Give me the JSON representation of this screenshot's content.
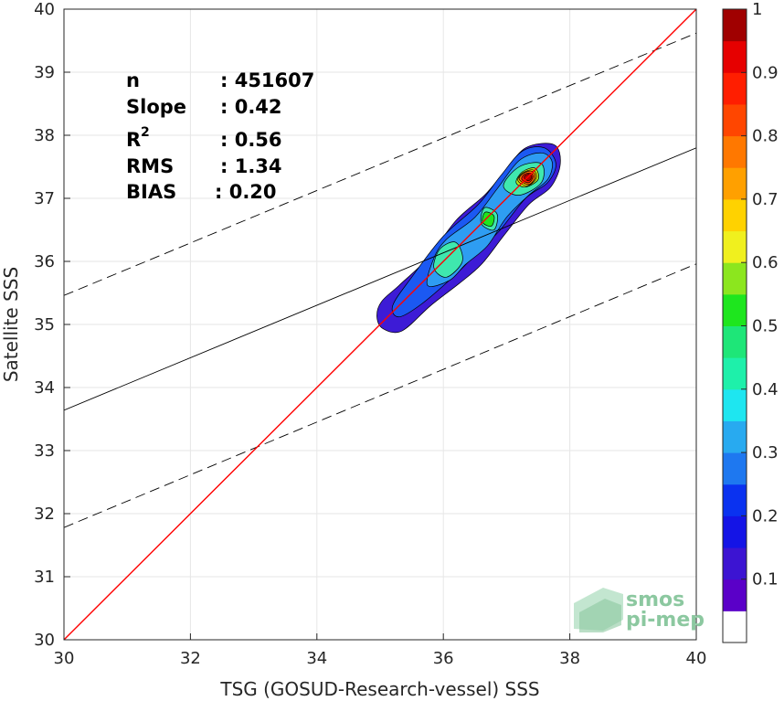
{
  "chart_data": {
    "type": "scatter",
    "subtype": "density-contour",
    "xlabel": "TSG (GOSUD-Research-vessel) SSS",
    "ylabel": "Satellite SSS",
    "xlim": [
      30,
      40
    ],
    "ylim": [
      30,
      40
    ],
    "xticks": [
      "30",
      "32",
      "34",
      "36",
      "38",
      "40"
    ],
    "yticks": [
      "30",
      "31",
      "32",
      "33",
      "34",
      "35",
      "36",
      "37",
      "38",
      "39",
      "40"
    ],
    "grid": true,
    "stats": {
      "n_label": "n",
      "n_value": ": 451607",
      "slope_label": "Slope",
      "slope_value": ": 0.42",
      "r2_label": "R",
      "r2_sup": "2",
      "r2_value": ": 0.56",
      "rms_label": "RMS",
      "rms_value": ": 1.34",
      "bias_label": "BIAS",
      "bias_value": ": 0.20"
    },
    "one_to_one_line": {
      "color": "#ff0000",
      "from": [
        30,
        30
      ],
      "to": [
        40,
        40
      ]
    },
    "fit_line": {
      "color": "#000000",
      "style": "solid",
      "y_at_x30": 33.64,
      "y_at_x40": 37.8
    },
    "upper_bound_line": {
      "color": "#000000",
      "style": "dashed",
      "y_at_x30": 35.46,
      "y_at_x40": 39.62
    },
    "lower_bound_line": {
      "color": "#000000",
      "style": "dashed",
      "y_at_x30": 31.78,
      "y_at_x40": 35.96
    },
    "density_levels": [
      {
        "level": 0.05,
        "color": "#3d1bd6",
        "points": [
          [
            35.02,
            35.36
          ],
          [
            34.95,
            35.12
          ],
          [
            35.05,
            34.93
          ],
          [
            35.35,
            34.9
          ],
          [
            35.8,
            35.3
          ],
          [
            36.25,
            35.65
          ],
          [
            36.6,
            35.95
          ],
          [
            36.95,
            36.4
          ],
          [
            37.35,
            36.9
          ],
          [
            37.7,
            37.18
          ],
          [
            37.85,
            37.55
          ],
          [
            37.75,
            37.85
          ],
          [
            37.3,
            37.8
          ],
          [
            36.95,
            37.4
          ],
          [
            36.65,
            37.05
          ],
          [
            36.2,
            36.65
          ],
          [
            35.75,
            36.05
          ],
          [
            35.3,
            35.62
          ]
        ]
      },
      {
        "level": 0.15,
        "color": "#1b59f2",
        "points": [
          [
            35.2,
            35.3
          ],
          [
            35.3,
            35.12
          ],
          [
            35.65,
            35.32
          ],
          [
            36.15,
            35.75
          ],
          [
            36.55,
            36.15
          ],
          [
            36.9,
            36.5
          ],
          [
            37.3,
            37.0
          ],
          [
            37.65,
            37.25
          ],
          [
            37.78,
            37.55
          ],
          [
            37.6,
            37.8
          ],
          [
            37.25,
            37.75
          ],
          [
            36.9,
            37.35
          ],
          [
            36.55,
            36.9
          ],
          [
            36.0,
            36.4
          ],
          [
            35.5,
            35.75
          ]
        ]
      },
      {
        "level": 0.3,
        "color": "#2e9df2",
        "points": [
          [
            35.75,
            35.62
          ],
          [
            36.1,
            35.7
          ],
          [
            36.35,
            35.95
          ],
          [
            36.7,
            36.25
          ],
          [
            37.0,
            36.7
          ],
          [
            37.35,
            37.05
          ],
          [
            37.65,
            37.3
          ],
          [
            37.72,
            37.58
          ],
          [
            37.55,
            37.72
          ],
          [
            37.2,
            37.6
          ],
          [
            36.85,
            37.15
          ],
          [
            36.5,
            36.7
          ],
          [
            36.05,
            36.35
          ],
          [
            35.85,
            36.05
          ]
        ]
      },
      {
        "level": 0.45,
        "color": "#3fe8ae",
        "points": [
          [
            35.85,
            35.9
          ],
          [
            36.05,
            35.75
          ],
          [
            36.3,
            36.0
          ],
          [
            36.2,
            36.3
          ],
          [
            35.95,
            36.2
          ]
        ]
      },
      {
        "level": 0.45,
        "color": "#3fe8ae",
        "points": [
          [
            36.6,
            36.6
          ],
          [
            36.8,
            36.5
          ],
          [
            36.85,
            36.75
          ],
          [
            36.65,
            36.85
          ]
        ]
      },
      {
        "level": 0.45,
        "color": "#3fe8ae",
        "points": [
          [
            36.95,
            37.2
          ],
          [
            37.2,
            37.05
          ],
          [
            37.55,
            37.25
          ],
          [
            37.55,
            37.55
          ],
          [
            37.2,
            37.5
          ]
        ]
      },
      {
        "level": 0.55,
        "color": "#1ee61e",
        "points": [
          [
            36.62,
            36.62
          ],
          [
            36.76,
            36.56
          ],
          [
            36.8,
            36.72
          ],
          [
            36.66,
            36.78
          ]
        ]
      },
      {
        "level": 0.62,
        "color": "#b4e61e",
        "points": [
          [
            37.15,
            37.25
          ],
          [
            37.3,
            37.18
          ],
          [
            37.5,
            37.3
          ],
          [
            37.45,
            37.48
          ],
          [
            37.25,
            37.42
          ]
        ]
      },
      {
        "level": 0.72,
        "color": "#ffcc00",
        "points": [
          [
            37.18,
            37.28
          ],
          [
            37.33,
            37.2
          ],
          [
            37.47,
            37.32
          ],
          [
            37.42,
            37.45
          ],
          [
            37.25,
            37.4
          ]
        ]
      },
      {
        "level": 0.82,
        "color": "#ff6a00",
        "points": [
          [
            37.2,
            37.3
          ],
          [
            37.35,
            37.22
          ],
          [
            37.45,
            37.33
          ],
          [
            37.4,
            37.43
          ],
          [
            37.27,
            37.4
          ]
        ]
      },
      {
        "level": 0.9,
        "color": "#ff1a00",
        "points": [
          [
            37.24,
            37.3
          ],
          [
            37.35,
            37.25
          ],
          [
            37.42,
            37.34
          ],
          [
            37.38,
            37.4
          ],
          [
            37.28,
            37.38
          ]
        ]
      },
      {
        "level": 0.97,
        "color": "#b00000",
        "points": [
          [
            37.28,
            37.32
          ],
          [
            37.35,
            37.28
          ],
          [
            37.4,
            37.34
          ],
          [
            37.36,
            37.38
          ],
          [
            37.3,
            37.37
          ]
        ]
      }
    ],
    "colorbar": {
      "ticks": [
        "1",
        "0.9",
        "0.8",
        "0.7",
        "0.6",
        "0.5",
        "0.4",
        "0.3",
        "0.2",
        "0.1"
      ],
      "tick_values": [
        1,
        0.9,
        0.8,
        0.7,
        0.6,
        0.5,
        0.4,
        0.3,
        0.2,
        0.1
      ],
      "range": [
        0,
        1
      ],
      "bands": [
        {
          "from": 0.0,
          "to": 0.05,
          "color": "#ffffff"
        },
        {
          "from": 0.05,
          "to": 0.1,
          "color": "#5a00c8"
        },
        {
          "from": 0.1,
          "to": 0.15,
          "color": "#3c14d2"
        },
        {
          "from": 0.15,
          "to": 0.2,
          "color": "#1414e6"
        },
        {
          "from": 0.2,
          "to": 0.25,
          "color": "#0a32f0"
        },
        {
          "from": 0.25,
          "to": 0.3,
          "color": "#1e78f0"
        },
        {
          "from": 0.3,
          "to": 0.35,
          "color": "#28aaf0"
        },
        {
          "from": 0.35,
          "to": 0.4,
          "color": "#1ee6f0"
        },
        {
          "from": 0.4,
          "to": 0.45,
          "color": "#1ef0aa"
        },
        {
          "from": 0.45,
          "to": 0.5,
          "color": "#1ee678"
        },
        {
          "from": 0.5,
          "to": 0.55,
          "color": "#1ee61e"
        },
        {
          "from": 0.55,
          "to": 0.6,
          "color": "#8ce61e"
        },
        {
          "from": 0.6,
          "to": 0.65,
          "color": "#f0f01e"
        },
        {
          "from": 0.65,
          "to": 0.7,
          "color": "#ffd200"
        },
        {
          "from": 0.7,
          "to": 0.75,
          "color": "#ffa000"
        },
        {
          "from": 0.75,
          "to": 0.8,
          "color": "#ff7800"
        },
        {
          "from": 0.8,
          "to": 0.85,
          "color": "#ff4600"
        },
        {
          "from": 0.85,
          "to": 0.9,
          "color": "#ff1e00"
        },
        {
          "from": 0.9,
          "to": 0.95,
          "color": "#e60000"
        },
        {
          "from": 0.95,
          "to": 1.0,
          "color": "#a00000"
        }
      ]
    }
  },
  "logo": {
    "line1": "smos",
    "line2": "pi-mep",
    "color": "#8cc8a0"
  }
}
